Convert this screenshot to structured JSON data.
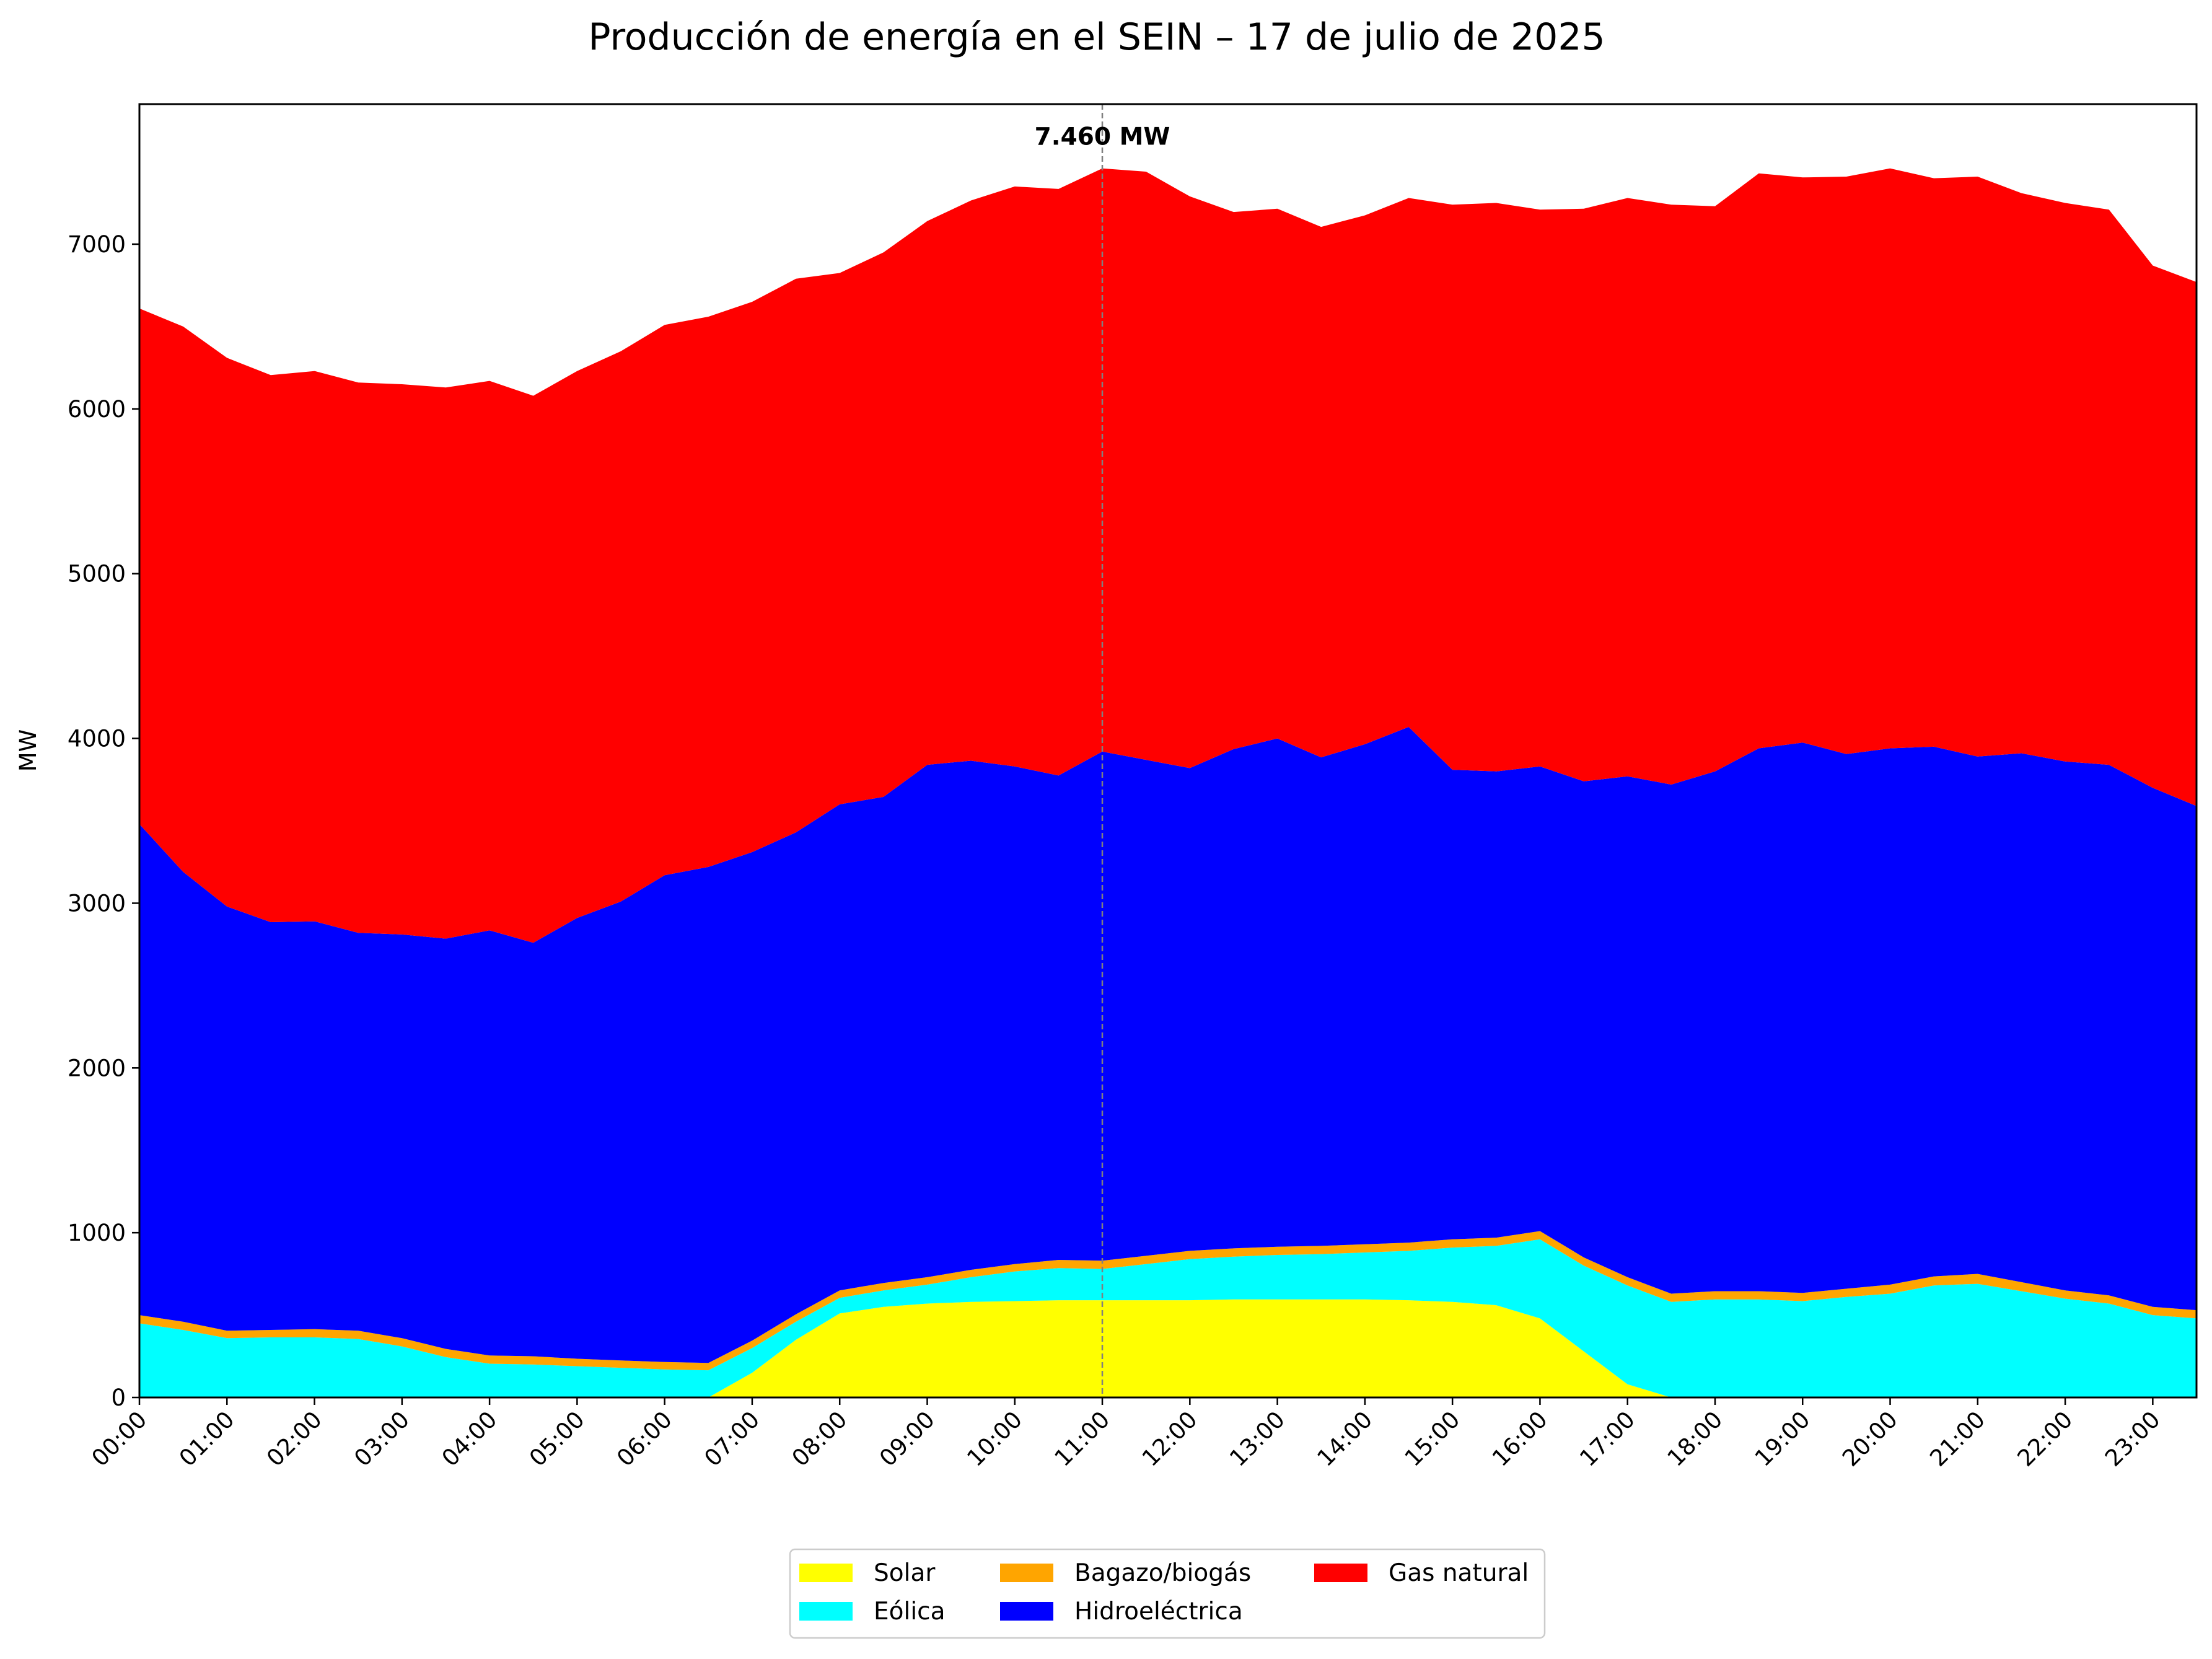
{
  "chart_data": {
    "type": "area",
    "stacked": true,
    "title": "Producción de energía en el SEIN – 17 de julio de 2025",
    "ylabel": "MW",
    "xlabel": "",
    "ylim": [
      0,
      7850
    ],
    "grid": false,
    "legend_position": "bottom-center",
    "yticks": [
      0,
      1000,
      2000,
      3000,
      4000,
      5000,
      6000,
      7000
    ],
    "xtick_labels": [
      "00:00",
      "01:00",
      "02:00",
      "03:00",
      "04:00",
      "05:00",
      "06:00",
      "07:00",
      "08:00",
      "09:00",
      "10:00",
      "11:00",
      "12:00",
      "13:00",
      "14:00",
      "15:00",
      "16:00",
      "17:00",
      "18:00",
      "19:00",
      "20:00",
      "21:00",
      "22:00",
      "23:00"
    ],
    "x": [
      "00:00",
      "00:30",
      "01:00",
      "01:30",
      "02:00",
      "02:30",
      "03:00",
      "03:30",
      "04:00",
      "04:30",
      "05:00",
      "05:30",
      "06:00",
      "06:30",
      "07:00",
      "07:30",
      "08:00",
      "08:30",
      "09:00",
      "09:30",
      "10:00",
      "10:30",
      "11:00",
      "11:30",
      "12:00",
      "12:30",
      "13:00",
      "13:30",
      "14:00",
      "14:30",
      "15:00",
      "15:30",
      "16:00",
      "16:30",
      "17:00",
      "17:30",
      "18:00",
      "18:30",
      "19:00",
      "19:30",
      "20:00",
      "20:30",
      "21:00",
      "21:30",
      "22:00",
      "22:30",
      "23:00",
      "23:30"
    ],
    "series": [
      {
        "name": "Solar",
        "color": "#ffff00",
        "values": [
          0,
          0,
          0,
          0,
          0,
          0,
          0,
          0,
          0,
          0,
          0,
          0,
          0,
          0,
          150,
          350,
          510,
          550,
          570,
          580,
          585,
          590,
          590,
          590,
          590,
          595,
          595,
          595,
          595,
          590,
          580,
          560,
          480,
          280,
          80,
          0,
          0,
          0,
          0,
          0,
          0,
          0,
          0,
          0,
          0,
          0,
          0,
          0
        ]
      },
      {
        "name": "Eólica",
        "color": "#00ffff",
        "values": [
          450,
          410,
          360,
          365,
          365,
          355,
          310,
          245,
          205,
          200,
          190,
          180,
          170,
          165,
          150,
          110,
          95,
          100,
          115,
          150,
          180,
          195,
          190,
          220,
          250,
          260,
          270,
          275,
          285,
          300,
          330,
          360,
          480,
          520,
          600,
          580,
          595,
          595,
          585,
          610,
          630,
          680,
          690,
          645,
          600,
          570,
          500,
          480
        ]
      },
      {
        "name": "Bagazo/biogás",
        "color": "#ffa500",
        "values": [
          50,
          50,
          45,
          45,
          50,
          50,
          50,
          50,
          50,
          50,
          45,
          45,
          45,
          45,
          45,
          45,
          45,
          45,
          45,
          45,
          45,
          50,
          50,
          50,
          50,
          50,
          50,
          50,
          50,
          50,
          50,
          50,
          50,
          50,
          50,
          50,
          50,
          50,
          50,
          50,
          55,
          55,
          60,
          55,
          50,
          50,
          50,
          50
        ]
      },
      {
        "name": "Hidroeléctrica",
        "color": "#0000ff",
        "values": [
          2980,
          2730,
          2575,
          2475,
          2475,
          2415,
          2450,
          2490,
          2580,
          2510,
          2675,
          2785,
          2955,
          3010,
          2965,
          2925,
          2950,
          2950,
          3110,
          3090,
          3020,
          2940,
          3090,
          3010,
          2930,
          3030,
          3085,
          2965,
          3035,
          3130,
          2850,
          2830,
          2820,
          2890,
          3040,
          3090,
          3155,
          3295,
          3340,
          3245,
          3255,
          3215,
          3140,
          3210,
          3210,
          3220,
          3150,
          3060
        ]
      },
      {
        "name": "Gas natural",
        "color": "#ff0000",
        "values": [
          3130,
          3310,
          3330,
          3320,
          3340,
          3340,
          3340,
          3345,
          3335,
          3320,
          3320,
          3340,
          3340,
          3340,
          3340,
          3360,
          3225,
          3305,
          3300,
          3400,
          3520,
          3560,
          3540,
          3570,
          3470,
          3260,
          3215,
          3220,
          3210,
          3210,
          3430,
          3450,
          3380,
          3475,
          3510,
          3520,
          3430,
          3490,
          3430,
          3505,
          3520,
          3450,
          3520,
          3400,
          3390,
          3370,
          3170,
          3180
        ]
      }
    ],
    "peak_annotation": {
      "x": "11:00",
      "value": 7460,
      "label": "7.460 MW"
    }
  }
}
